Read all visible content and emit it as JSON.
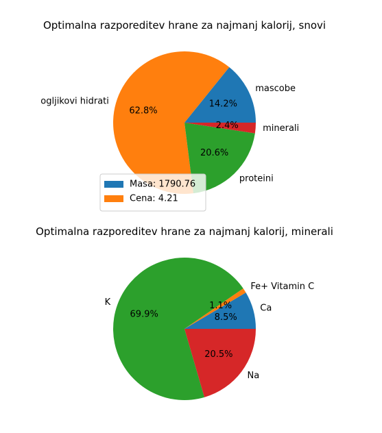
{
  "chart_data": [
    {
      "type": "pie",
      "title": "Optimalna razporeditev hrane za najmanj kalorij, snovi",
      "categories": [
        "mascobe",
        "ogljikovi hidrati",
        "proteini",
        "minerali"
      ],
      "values": [
        14.2,
        62.8,
        20.6,
        2.4
      ],
      "value_labels": [
        "14.2%",
        "62.8%",
        "20.6%",
        "2.4%"
      ],
      "colors": [
        "#1f77b4",
        "#ff7f0e",
        "#2ca02c",
        "#d62728"
      ],
      "legend": {
        "placement": "lower-left",
        "entries": [
          {
            "label": "Masa: 1790.76",
            "color": "#1f77b4"
          },
          {
            "label": "Cena: 4.21",
            "color": "#ff7f0e"
          }
        ]
      }
    },
    {
      "type": "pie",
      "title": "Optimalna razporeditev hrane za najmanj kalorij, minerali",
      "categories": [
        "Ca",
        "Fe+ Vitamin C",
        "K",
        "Na"
      ],
      "values": [
        8.5,
        1.1,
        69.9,
        20.5
      ],
      "value_labels": [
        "8.5%",
        "1.1%",
        "69.9%",
        "20.5%"
      ],
      "colors": [
        "#1f77b4",
        "#ff7f0e",
        "#2ca02c",
        "#d62728"
      ]
    }
  ]
}
